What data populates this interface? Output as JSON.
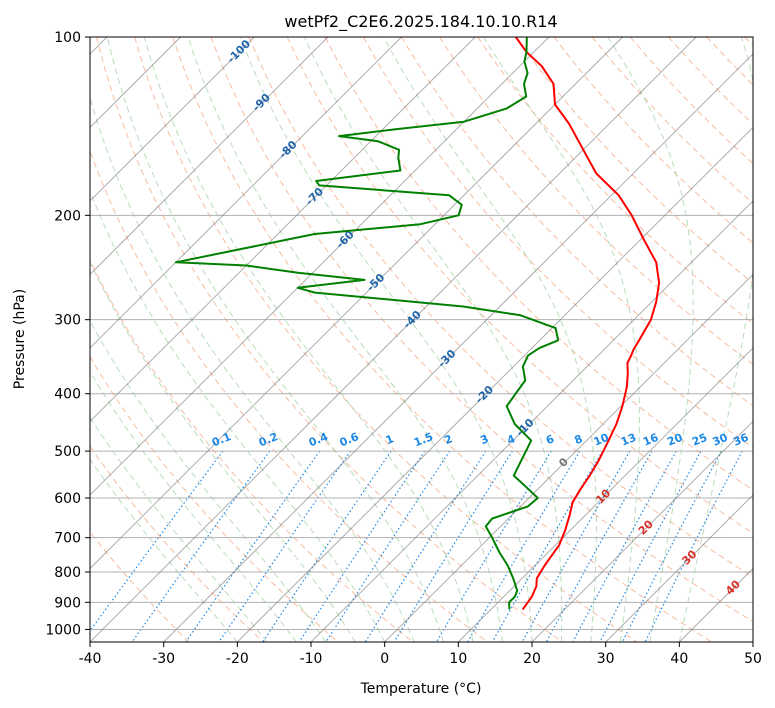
{
  "chart_data": {
    "type": "line",
    "title": "wetPf2_C2E6.2025.184.10.10.R14",
    "xlabel": "Temperature (°C)",
    "ylabel": "Pressure (hPa)",
    "xlim": [
      -40,
      50
    ],
    "ylim": [
      1050,
      100
    ],
    "y_scale": "log",
    "x_ticks": [
      -40,
      -30,
      -20,
      -10,
      0,
      10,
      20,
      30,
      40,
      50
    ],
    "y_ticks": [
      100,
      200,
      300,
      400,
      500,
      600,
      700,
      800,
      900,
      1000
    ],
    "grid": true,
    "skew": 35,
    "series": [
      {
        "color": "#ff0000",
        "points": [
          [
            14.3,
            925
          ],
          [
            13.8,
            880
          ],
          [
            13,
            845
          ],
          [
            12,
            820
          ],
          [
            11.3,
            780
          ],
          [
            10.5,
            720
          ],
          [
            9.3,
            680
          ],
          [
            7.8,
            640
          ],
          [
            6.5,
            610
          ],
          [
            5.8,
            580
          ],
          [
            5.2,
            550
          ],
          [
            4.4,
            520
          ],
          [
            3,
            480
          ],
          [
            1.8,
            450
          ],
          [
            0.2,
            420
          ],
          [
            -1.8,
            390
          ],
          [
            -3.5,
            370
          ],
          [
            -5,
            355
          ],
          [
            -5.5,
            345
          ],
          [
            -6,
            337
          ],
          [
            -6.5,
            325
          ],
          [
            -7.7,
            300
          ],
          [
            -9.4,
            280
          ],
          [
            -11.6,
            260
          ],
          [
            -14.8,
            240
          ],
          [
            -19.5,
            220
          ],
          [
            -24.5,
            200
          ],
          [
            -29,
            185
          ],
          [
            -35,
            170
          ],
          [
            -40,
            155
          ],
          [
            -45.5,
            140
          ],
          [
            -50,
            130
          ],
          [
            -53,
            120
          ],
          [
            -57,
            112
          ],
          [
            -61,
            106
          ],
          [
            -64.5,
            100
          ]
        ]
      },
      {
        "color": "#008000",
        "points": [
          [
            12.5,
            925
          ],
          [
            11.5,
            900
          ],
          [
            11.5,
            880
          ],
          [
            11,
            860
          ],
          [
            8.8,
            820
          ],
          [
            6.3,
            780
          ],
          [
            3.3,
            740
          ],
          [
            0.4,
            700
          ],
          [
            -2,
            670
          ],
          [
            -2.2,
            650
          ],
          [
            1,
            620
          ],
          [
            1.2,
            600
          ],
          [
            -2.5,
            570
          ],
          [
            -5.1,
            550
          ],
          [
            -6.1,
            520
          ],
          [
            -7.5,
            480
          ],
          [
            -12,
            450
          ],
          [
            -15.5,
            420
          ],
          [
            -16,
            400
          ],
          [
            -16.5,
            380
          ],
          [
            -18.7,
            360
          ],
          [
            -19.5,
            345
          ],
          [
            -19,
            335
          ],
          [
            -17.5,
            325
          ],
          [
            -19.5,
            310
          ],
          [
            -26,
            295
          ],
          [
            -35,
            285
          ],
          [
            -57,
            270
          ],
          [
            -60,
            265
          ],
          [
            -52,
            257
          ],
          [
            -62,
            250
          ],
          [
            -70,
            243
          ],
          [
            -80,
            240
          ],
          [
            -65,
            215
          ],
          [
            -52,
            207
          ],
          [
            -48,
            200
          ],
          [
            -49,
            192
          ],
          [
            -52,
            185
          ],
          [
            -71,
            178
          ],
          [
            -72,
            175
          ],
          [
            -62,
            168
          ],
          [
            -64,
            160
          ],
          [
            -65,
            155
          ],
          [
            -69,
            150
          ],
          [
            -75,
            147
          ],
          [
            -68,
            143
          ],
          [
            -60,
            139
          ],
          [
            -56,
            132
          ],
          [
            -55,
            126
          ],
          [
            -57,
            120
          ],
          [
            -58,
            115
          ],
          [
            -60,
            110
          ],
          [
            -61,
            106
          ],
          [
            -63,
            100
          ]
        ]
      }
    ],
    "isotherm_labels": [
      "-100",
      "-90",
      "-80",
      "-70",
      "-60",
      "-50",
      "-40",
      "-30",
      "-20",
      "-10",
      "0",
      "10",
      "20",
      "30",
      "40"
    ],
    "mixing_ratio_labels": [
      "0.1",
      "0.2",
      "0.4",
      "0.6",
      "1",
      "1.5",
      "2",
      "3",
      "4",
      "6",
      "8",
      "10",
      "13",
      "16",
      "20",
      "25",
      "30",
      "36"
    ]
  },
  "colors": {
    "temperature": "#ff0000",
    "dewpoint": "#008000",
    "dry_adiabat": "#f4a582",
    "moist_adiabat": "#a6d4a6",
    "mixing_ratio": "#1e88e5",
    "isotherm": "#777777",
    "isotherm_label_cold": "#2166ac",
    "isotherm_label_warm": "#d73027"
  }
}
